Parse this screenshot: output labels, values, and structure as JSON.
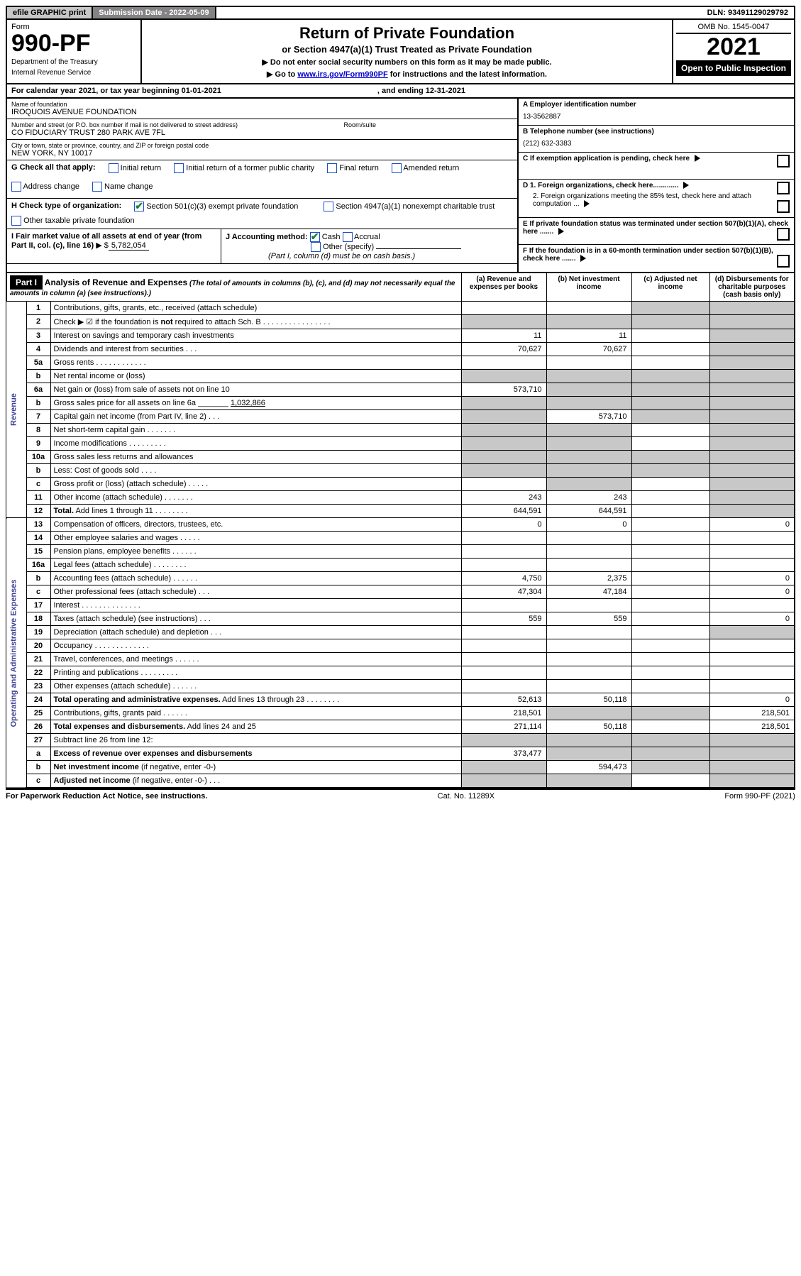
{
  "topbar": {
    "efile": "efile GRAPHIC print",
    "submission_label": "Submission Date - 2022-05-09",
    "dln": "DLN: 93491129029792"
  },
  "header": {
    "form_word": "Form",
    "form_no": "990-PF",
    "dept": "Department of the Treasury",
    "irs": "Internal Revenue Service",
    "title": "Return of Private Foundation",
    "subtitle": "or Section 4947(a)(1) Trust Treated as Private Foundation",
    "inst1": "▶ Do not enter social security numbers on this form as it may be made public.",
    "inst2_pre": "▶ Go to ",
    "inst2_link": "www.irs.gov/Form990PF",
    "inst2_post": " for instructions and the latest information.",
    "omb": "OMB No. 1545-0047",
    "year": "2021",
    "open_public": "Open to Public Inspection"
  },
  "cal_year": {
    "text": "For calendar year 2021, or tax year beginning 01-01-2021",
    "ending": ", and ending 12-31-2021"
  },
  "identity": {
    "name_label": "Name of foundation",
    "name_val": "IROQUOIS AVENUE FOUNDATION",
    "addr_label": "Number and street (or P.O. box number if mail is not delivered to street address)",
    "room_label": "Room/suite",
    "addr_val": "CO FIDUCIARY TRUST 280 PARK AVE 7FL",
    "city_label": "City or town, state or province, country, and ZIP or foreign postal code",
    "city_val": "NEW YORK, NY  10017",
    "ein_label": "A Employer identification number",
    "ein_val": "13-3562887",
    "tel_label": "B Telephone number (see instructions)",
    "tel_val": "(212) 632-3383",
    "c_label": "C If exemption application is pending, check here",
    "d1_label": "D 1. Foreign organizations, check here.............",
    "d2_label": "2. Foreign organizations meeting the 85% test, check here and attach computation ...",
    "e_label": "E  If private foundation status was terminated under section 507(b)(1)(A), check here .......",
    "f_label": "F  If the foundation is in a 60-month termination under section 507(b)(1)(B), check here ......."
  },
  "g_row": {
    "label": "G Check all that apply:",
    "items": [
      "Initial return",
      "Initial return of a former public charity",
      "Final return",
      "Amended return",
      "Address change",
      "Name change"
    ]
  },
  "h_row": {
    "label": "H Check type of organization:",
    "item1": "Section 501(c)(3) exempt private foundation",
    "item2": "Section 4947(a)(1) nonexempt charitable trust",
    "item3": "Other taxable private foundation"
  },
  "i_row": {
    "label": "I Fair market value of all assets at end of year (from Part II, col. (c), line 16)",
    "val_prefix": "▶ $",
    "val": "5,782,054"
  },
  "j_row": {
    "label": "J Accounting method:",
    "cash": "Cash",
    "accrual": "Accrual",
    "other": "Other (specify)",
    "note": "(Part I, column (d) must be on cash basis.)"
  },
  "part1": {
    "label": "Part I",
    "title": "Analysis of Revenue and Expenses",
    "sub": "(The total of amounts in columns (b), (c), and (d) may not necessarily equal the amounts in column (a) (see instructions).)",
    "col_a": "(a)  Revenue and expenses per books",
    "col_b": "(b)  Net investment income",
    "col_c": "(c)  Adjusted net income",
    "col_d": "(d)  Disbursements for charitable purposes (cash basis only)"
  },
  "side": {
    "revenue": "Revenue",
    "expenses": "Operating and Administrative Expenses"
  },
  "rows": [
    {
      "n": "1",
      "d": "Contributions, gifts, grants, etc., received (attach schedule)",
      "a": "",
      "b": "",
      "c": "shade",
      "dd": "shade"
    },
    {
      "n": "2",
      "d": "Check ▶ ☑ if the foundation is <b>not</b> required to attach Sch. B  .  .  .  .  .  .  .  .  .  .  .  .  .  .  .  .",
      "a": "shade",
      "b": "shade",
      "c": "shade",
      "dd": "shade"
    },
    {
      "n": "3",
      "d": "Interest on savings and temporary cash investments",
      "a": "11",
      "b": "11",
      "c": "",
      "dd": "shade"
    },
    {
      "n": "4",
      "d": "Dividends and interest from securities  .  .  .",
      "a": "70,627",
      "b": "70,627",
      "c": "",
      "dd": "shade"
    },
    {
      "n": "5a",
      "d": "Gross rents  .  .  .  .  .  .  .  .  .  .  .  .",
      "a": "",
      "b": "",
      "c": "",
      "dd": "shade"
    },
    {
      "n": "b",
      "d": "Net rental income or (loss) ",
      "a": "shade",
      "b": "shade",
      "c": "shade",
      "dd": "shade"
    },
    {
      "n": "6a",
      "d": "Net gain or (loss) from sale of assets not on line 10",
      "a": "573,710",
      "b": "shade",
      "c": "shade",
      "dd": "shade"
    },
    {
      "n": "b",
      "d": "Gross sales price for all assets on line 6a _______ <u>1,032,866</u>",
      "a": "shade",
      "b": "shade",
      "c": "shade",
      "dd": "shade"
    },
    {
      "n": "7",
      "d": "Capital gain net income (from Part IV, line 2)  .  .  .",
      "a": "shade",
      "b": "573,710",
      "c": "shade",
      "dd": "shade"
    },
    {
      "n": "8",
      "d": "Net short-term capital gain  .  .  .  .  .  .  .",
      "a": "shade",
      "b": "shade",
      "c": "",
      "dd": "shade"
    },
    {
      "n": "9",
      "d": "Income modifications  .  .  .  .  .  .  .  .  .",
      "a": "shade",
      "b": "shade",
      "c": "",
      "dd": "shade"
    },
    {
      "n": "10a",
      "d": "Gross sales less returns and allowances",
      "a": "shade",
      "b": "shade",
      "c": "shade",
      "dd": "shade"
    },
    {
      "n": "b",
      "d": "Less: Cost of goods sold  .  .  .  .",
      "a": "shade",
      "b": "shade",
      "c": "shade",
      "dd": "shade"
    },
    {
      "n": "c",
      "d": "Gross profit or (loss) (attach schedule)  .  .  .  .  .",
      "a": "",
      "b": "shade",
      "c": "",
      "dd": "shade"
    },
    {
      "n": "11",
      "d": "Other income (attach schedule)  .  .  .  .  .  .  .",
      "a": "243",
      "b": "243",
      "c": "",
      "dd": "shade"
    },
    {
      "n": "12",
      "d": "<b>Total.</b> Add lines 1 through 11  .  .  .  .  .  .  .  .",
      "a": "644,591",
      "b": "644,591",
      "c": "",
      "dd": "shade"
    },
    {
      "n": "13",
      "d": "Compensation of officers, directors, trustees, etc.",
      "a": "0",
      "b": "0",
      "c": "",
      "dd": "0"
    },
    {
      "n": "14",
      "d": "Other employee salaries and wages  .  .  .  .  .",
      "a": "",
      "b": "",
      "c": "",
      "dd": ""
    },
    {
      "n": "15",
      "d": "Pension plans, employee benefits  .  .  .  .  .  .",
      "a": "",
      "b": "",
      "c": "",
      "dd": ""
    },
    {
      "n": "16a",
      "d": "Legal fees (attach schedule)  .  .  .  .  .  .  .  .",
      "a": "",
      "b": "",
      "c": "",
      "dd": ""
    },
    {
      "n": "b",
      "d": "Accounting fees (attach schedule)  .  .  .  .  .  .",
      "a": "4,750",
      "b": "2,375",
      "c": "",
      "dd": "0"
    },
    {
      "n": "c",
      "d": "Other professional fees (attach schedule)  .  .  .",
      "a": "47,304",
      "b": "47,184",
      "c": "",
      "dd": "0"
    },
    {
      "n": "17",
      "d": "Interest  .  .  .  .  .  .  .  .  .  .  .  .  .  .",
      "a": "",
      "b": "",
      "c": "",
      "dd": ""
    },
    {
      "n": "18",
      "d": "Taxes (attach schedule) (see instructions)  .  .  .",
      "a": "559",
      "b": "559",
      "c": "",
      "dd": "0"
    },
    {
      "n": "19",
      "d": "Depreciation (attach schedule) and depletion  .  .  .",
      "a": "",
      "b": "",
      "c": "",
      "dd": "shade"
    },
    {
      "n": "20",
      "d": "Occupancy  .  .  .  .  .  .  .  .  .  .  .  .  .",
      "a": "",
      "b": "",
      "c": "",
      "dd": ""
    },
    {
      "n": "21",
      "d": "Travel, conferences, and meetings  .  .  .  .  .  .",
      "a": "",
      "b": "",
      "c": "",
      "dd": ""
    },
    {
      "n": "22",
      "d": "Printing and publications  .  .  .  .  .  .  .  .  .",
      "a": "",
      "b": "",
      "c": "",
      "dd": ""
    },
    {
      "n": "23",
      "d": "Other expenses (attach schedule)  .  .  .  .  .  .",
      "a": "",
      "b": "",
      "c": "",
      "dd": ""
    },
    {
      "n": "24",
      "d": "<b>Total operating and administrative expenses.</b> Add lines 13 through 23  .  .  .  .  .  .  .  .",
      "a": "52,613",
      "b": "50,118",
      "c": "",
      "dd": "0"
    },
    {
      "n": "25",
      "d": "Contributions, gifts, grants paid  .  .  .  .  .  .",
      "a": "218,501",
      "b": "shade",
      "c": "shade",
      "dd": "218,501"
    },
    {
      "n": "26",
      "d": "<b>Total expenses and disbursements.</b> Add lines 24 and 25",
      "a": "271,114",
      "b": "50,118",
      "c": "",
      "dd": "218,501"
    },
    {
      "n": "27",
      "d": "Subtract line 26 from line 12:",
      "a": "shade",
      "b": "shade",
      "c": "shade",
      "dd": "shade"
    },
    {
      "n": "a",
      "d": "<b>Excess of revenue over expenses and disbursements</b>",
      "a": "373,477",
      "b": "shade",
      "c": "shade",
      "dd": "shade"
    },
    {
      "n": "b",
      "d": "<b>Net investment income</b> (if negative, enter -0-)",
      "a": "shade",
      "b": "594,473",
      "c": "shade",
      "dd": "shade"
    },
    {
      "n": "c",
      "d": "<b>Adjusted net income</b> (if negative, enter -0-)  .  .  .",
      "a": "shade",
      "b": "shade",
      "c": "",
      "dd": "shade"
    }
  ],
  "footer": {
    "left": "For Paperwork Reduction Act Notice, see instructions.",
    "mid": "Cat. No. 11289X",
    "right": "Form 990-PF (2021)"
  }
}
